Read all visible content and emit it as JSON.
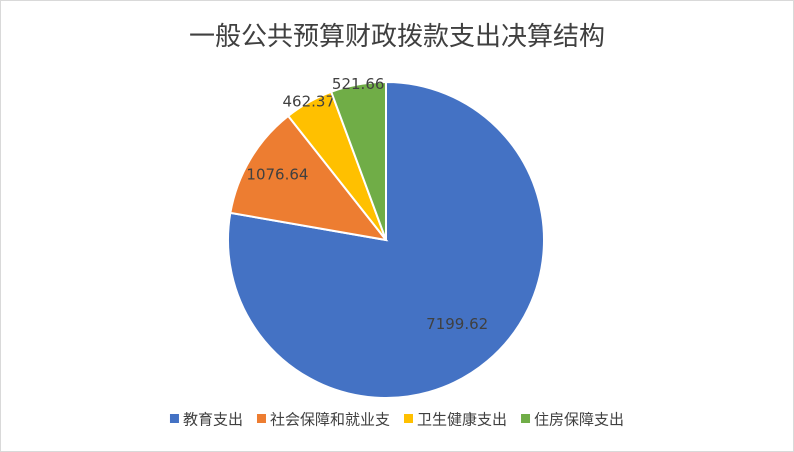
{
  "chart_data": {
    "type": "pie",
    "title": "一般公共预算财政拨款支出决算结构",
    "categories": [
      "教育支出",
      "社会保障和就业支",
      "卫生健康支出",
      "住房保障支出"
    ],
    "values": [
      7199.62,
      1076.64,
      462.37,
      521.66
    ],
    "colors": [
      "#4472c4",
      "#ed7d31",
      "#ffc000",
      "#70ad47"
    ],
    "legend": "bottom"
  }
}
